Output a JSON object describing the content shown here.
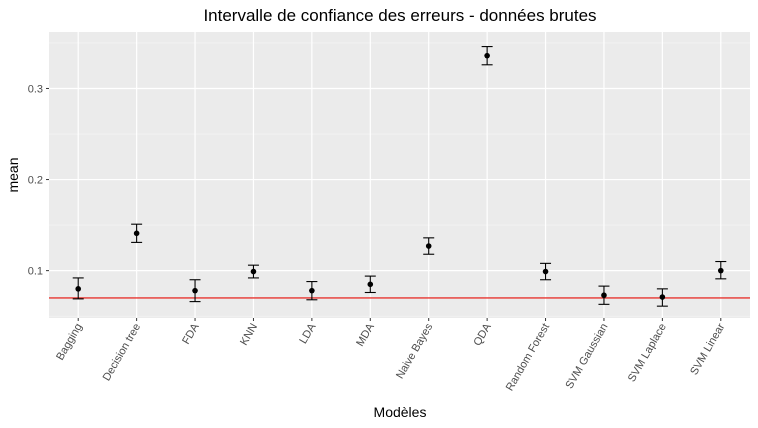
{
  "chart_data": {
    "type": "errorbar",
    "title": "Intervalle de confiance des erreurs - données brutes",
    "xlabel": "Modèles",
    "ylabel": "mean",
    "ylim": [
      0.048,
      0.362
    ],
    "yticks": [
      0.1,
      0.2,
      0.3
    ],
    "ytick_labels": [
      "0.1",
      "0.2",
      "0.3"
    ],
    "grid": true,
    "background": "#ebebeb",
    "reference_line": {
      "y": 0.07,
      "color": "#e8352f"
    },
    "categories": [
      "Bagging",
      "Decision tree",
      "FDA",
      "KNN",
      "LDA",
      "MDA",
      "Naive Bayes",
      "QDA",
      "Random Forest",
      "SVM Gaussian",
      "SVM Laplace",
      "SVM Linear"
    ],
    "series": [
      {
        "values": [
          0.08,
          0.141,
          0.078,
          0.099,
          0.078,
          0.085,
          0.127,
          0.336,
          0.099,
          0.073,
          0.071,
          0.1
        ],
        "lower": [
          0.069,
          0.131,
          0.066,
          0.092,
          0.068,
          0.076,
          0.118,
          0.326,
          0.09,
          0.063,
          0.061,
          0.091
        ],
        "upper": [
          0.092,
          0.151,
          0.09,
          0.106,
          0.088,
          0.094,
          0.136,
          0.346,
          0.108,
          0.083,
          0.08,
          0.11
        ]
      }
    ]
  }
}
